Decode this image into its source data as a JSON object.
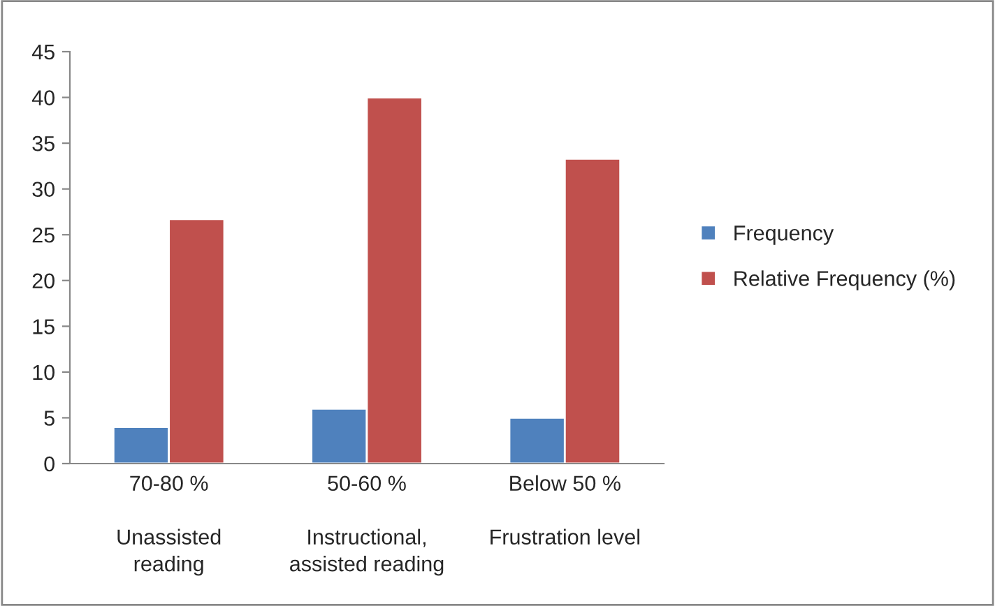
{
  "chart_data": {
    "type": "bar",
    "categories": [
      "70-80 %\n\nUnassisted\nreading",
      "50-60 %\n\nInstructional,\nassisted reading",
      "Below 50 %\n\nFrustration level\n"
    ],
    "series": [
      {
        "name": "Frequency",
        "color": "#4f81bd",
        "values": [
          4,
          6,
          5
        ]
      },
      {
        "name": "Relative Frequency (%)",
        "color": "#c0504d",
        "values": [
          26.7,
          40,
          33.3
        ]
      }
    ],
    "ylim": [
      0,
      45
    ],
    "yticks": [
      0,
      5,
      10,
      15,
      20,
      25,
      30,
      35,
      40,
      45
    ],
    "grid": false,
    "legend": "right"
  }
}
